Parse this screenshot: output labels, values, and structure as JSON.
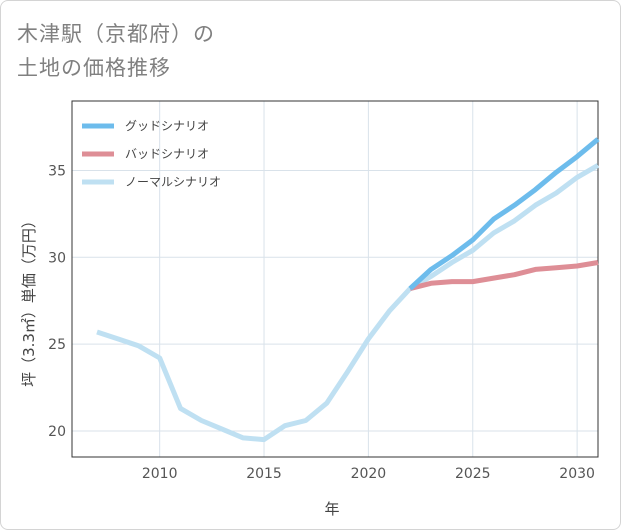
{
  "title": {
    "line1": "木津駅（京都府）の",
    "line2": "土地の価格推移"
  },
  "chart_data": {
    "type": "line",
    "xlabel": "年",
    "ylabel": "坪（3.3㎡）単価（万円）",
    "xlim": [
      2005.8,
      2031
    ],
    "ylim": [
      18.5,
      39
    ],
    "xticks": [
      2010,
      2015,
      2020,
      2025,
      2030
    ],
    "yticks": [
      20,
      25,
      30,
      35
    ],
    "grid": true,
    "legend_position": "top-left",
    "series": [
      {
        "name": "グッドシナリオ",
        "color": "#6dbcec",
        "x": [
          2022,
          2023,
          2024,
          2025,
          2026,
          2027,
          2028,
          2029,
          2030,
          2031
        ],
        "y": [
          28.2,
          29.3,
          30.1,
          31.0,
          32.2,
          33.0,
          33.9,
          34.9,
          35.8,
          36.8
        ]
      },
      {
        "name": "バッドシナリオ",
        "color": "#de8e96",
        "x": [
          2022,
          2023,
          2024,
          2025,
          2026,
          2027,
          2028,
          2029,
          2030,
          2031
        ],
        "y": [
          28.2,
          28.5,
          28.6,
          28.6,
          28.8,
          29.0,
          29.3,
          29.4,
          29.5,
          29.7
        ]
      },
      {
        "name": "ノーマルシナリオ",
        "color": "#bfe0f2",
        "x": [
          2007,
          2008,
          2009,
          2010,
          2011,
          2012,
          2013,
          2014,
          2015,
          2016,
          2017,
          2018,
          2019,
          2020,
          2021,
          2022,
          2023,
          2024,
          2025,
          2026,
          2027,
          2028,
          2029,
          2030,
          2031
        ],
        "y": [
          25.7,
          25.3,
          24.9,
          24.2,
          21.3,
          20.6,
          20.1,
          19.6,
          19.5,
          20.3,
          20.6,
          21.6,
          23.4,
          25.3,
          26.9,
          28.2,
          28.9,
          29.7,
          30.4,
          31.4,
          32.1,
          33.0,
          33.7,
          34.6,
          35.3
        ]
      }
    ]
  }
}
